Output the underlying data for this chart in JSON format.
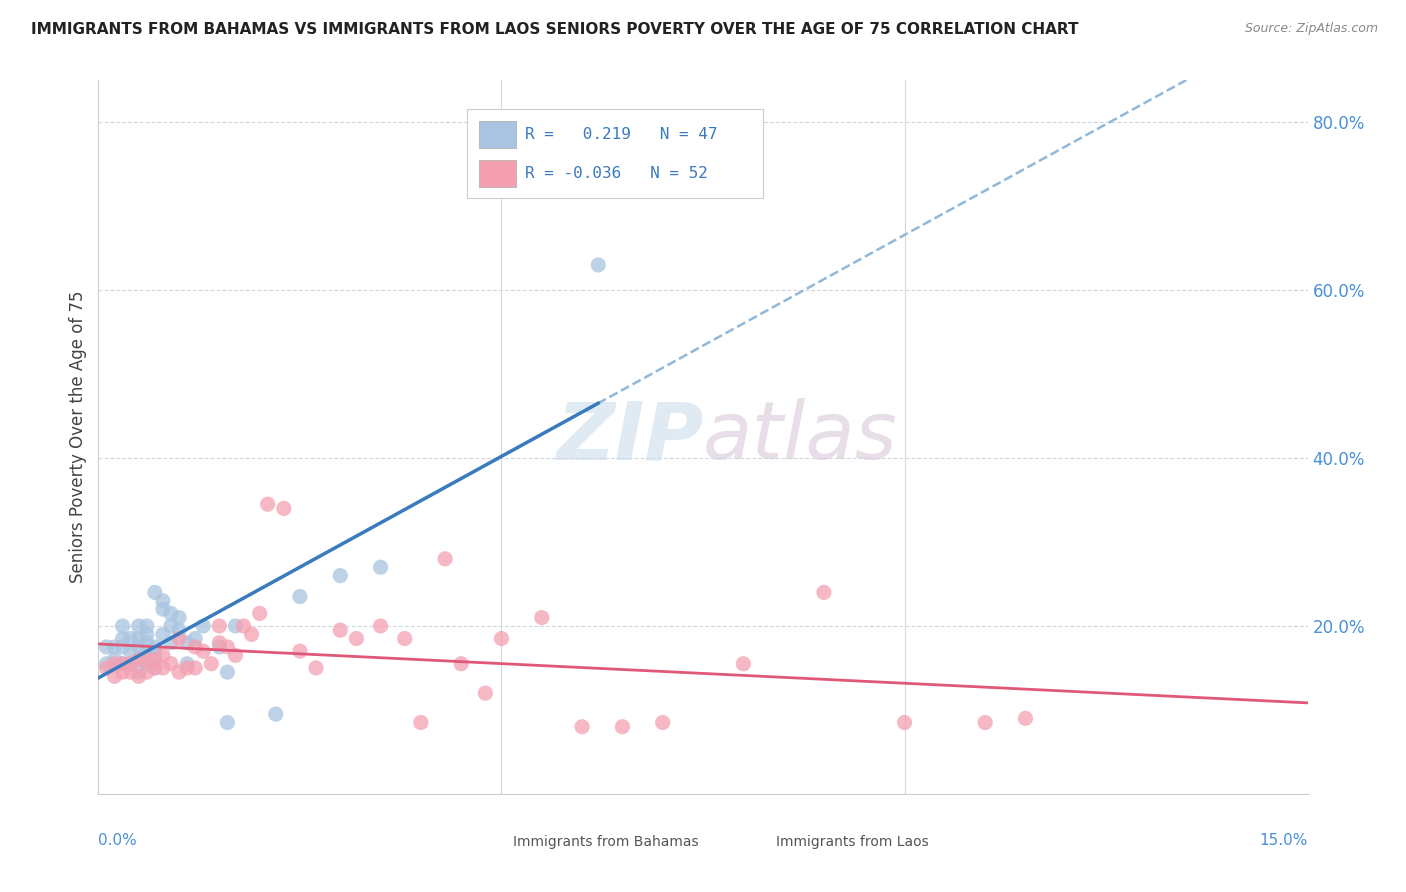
{
  "title": "IMMIGRANTS FROM BAHAMAS VS IMMIGRANTS FROM LAOS SENIORS POVERTY OVER THE AGE OF 75 CORRELATION CHART",
  "source": "Source: ZipAtlas.com",
  "ylabel": "Seniors Poverty Over the Age of 75",
  "xmin": 0.0,
  "xmax": 0.15,
  "ymin": 0.0,
  "ymax": 0.85,
  "right_yticks": [
    0.0,
    0.2,
    0.4,
    0.6,
    0.8
  ],
  "right_yticklabels": [
    "",
    "20.0%",
    "40.0%",
    "60.0%",
    "80.0%"
  ],
  "bahamas_R": 0.219,
  "bahamas_N": 47,
  "laos_R": -0.036,
  "laos_N": 52,
  "bahamas_color": "#a8c4e0",
  "laos_color": "#f4a0b0",
  "bahamas_line_color": "#3a7abf",
  "laos_line_color": "#e05878",
  "dashed_line_color": "#90b8d8",
  "background_color": "#ffffff",
  "grid_color": "#d0d8e4",
  "watermark_color": "#dce8f2",
  "bahamas_x": [
    0.001,
    0.001,
    0.002,
    0.002,
    0.003,
    0.003,
    0.003,
    0.003,
    0.004,
    0.004,
    0.004,
    0.004,
    0.005,
    0.005,
    0.005,
    0.005,
    0.005,
    0.006,
    0.006,
    0.006,
    0.006,
    0.006,
    0.007,
    0.007,
    0.007,
    0.007,
    0.008,
    0.008,
    0.008,
    0.009,
    0.009,
    0.009,
    0.01,
    0.01,
    0.011,
    0.011,
    0.012,
    0.013,
    0.015,
    0.016,
    0.016,
    0.017,
    0.022,
    0.025,
    0.03,
    0.035,
    0.062
  ],
  "bahamas_y": [
    0.155,
    0.175,
    0.16,
    0.175,
    0.155,
    0.175,
    0.185,
    0.2,
    0.155,
    0.155,
    0.17,
    0.185,
    0.145,
    0.16,
    0.175,
    0.185,
    0.2,
    0.155,
    0.17,
    0.18,
    0.19,
    0.2,
    0.15,
    0.165,
    0.175,
    0.24,
    0.19,
    0.22,
    0.23,
    0.18,
    0.2,
    0.215,
    0.195,
    0.21,
    0.155,
    0.18,
    0.185,
    0.2,
    0.175,
    0.085,
    0.145,
    0.2,
    0.095,
    0.235,
    0.26,
    0.27,
    0.63
  ],
  "laos_x": [
    0.001,
    0.002,
    0.002,
    0.003,
    0.003,
    0.004,
    0.004,
    0.005,
    0.005,
    0.006,
    0.006,
    0.007,
    0.007,
    0.008,
    0.008,
    0.009,
    0.01,
    0.01,
    0.011,
    0.012,
    0.012,
    0.013,
    0.014,
    0.015,
    0.015,
    0.016,
    0.017,
    0.018,
    0.019,
    0.02,
    0.021,
    0.023,
    0.025,
    0.027,
    0.03,
    0.032,
    0.035,
    0.038,
    0.04,
    0.043,
    0.045,
    0.048,
    0.05,
    0.055,
    0.06,
    0.065,
    0.07,
    0.08,
    0.09,
    0.1,
    0.11,
    0.115
  ],
  "laos_y": [
    0.15,
    0.14,
    0.155,
    0.145,
    0.155,
    0.145,
    0.155,
    0.14,
    0.16,
    0.145,
    0.16,
    0.15,
    0.16,
    0.15,
    0.165,
    0.155,
    0.145,
    0.185,
    0.15,
    0.15,
    0.175,
    0.17,
    0.155,
    0.18,
    0.2,
    0.175,
    0.165,
    0.2,
    0.19,
    0.215,
    0.345,
    0.34,
    0.17,
    0.15,
    0.195,
    0.185,
    0.2,
    0.185,
    0.085,
    0.28,
    0.155,
    0.12,
    0.185,
    0.21,
    0.08,
    0.08,
    0.085,
    0.155,
    0.24,
    0.085,
    0.085,
    0.09
  ]
}
